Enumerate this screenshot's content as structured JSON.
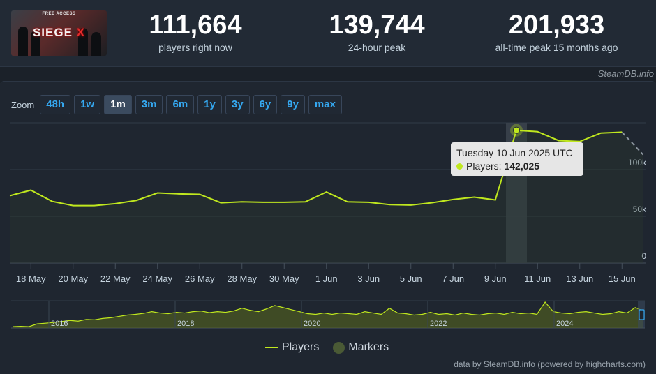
{
  "header": {
    "logo": {
      "top_text": "FREE ACCESS",
      "wordmark": "SIEGE",
      "wordmark_x": "X"
    },
    "stats": [
      {
        "value": "111,664",
        "label": "players right now"
      },
      {
        "value": "139,744",
        "label": "24-hour peak"
      },
      {
        "value": "201,933",
        "label": "all-time peak 15 months ago"
      }
    ]
  },
  "site_tag": "SteamDB.info",
  "zoom": {
    "label": "Zoom",
    "buttons": [
      "48h",
      "1w",
      "1m",
      "3m",
      "6m",
      "1y",
      "3y",
      "6y",
      "9y",
      "max"
    ],
    "active": "1m"
  },
  "tooltip": {
    "date": "Tuesday 10 Jun 2025 UTC",
    "series_label": "Players:",
    "value": "142,025"
  },
  "legend": {
    "players": "Players",
    "markers": "Markers"
  },
  "credit": "data by SteamDB.info (powered by highcharts.com)",
  "chart_data": {
    "type": "line",
    "series_name": "Players",
    "x_tick_labels": [
      "18 May",
      "20 May",
      "22 May",
      "24 May",
      "26 May",
      "28 May",
      "30 May",
      "1 Jun",
      "3 Jun",
      "5 Jun",
      "7 Jun",
      "9 Jun",
      "11 Jun",
      "13 Jun",
      "15 Jun"
    ],
    "y_tick_labels": [
      "0",
      "50k",
      "100k"
    ],
    "ylim": [
      0,
      150000
    ],
    "x": [
      "2025-05-17",
      "2025-05-18",
      "2025-05-19",
      "2025-05-20",
      "2025-05-21",
      "2025-05-22",
      "2025-05-23",
      "2025-05-24",
      "2025-05-25",
      "2025-05-26",
      "2025-05-27",
      "2025-05-28",
      "2025-05-29",
      "2025-05-30",
      "2025-05-31",
      "2025-06-01",
      "2025-06-02",
      "2025-06-03",
      "2025-06-04",
      "2025-06-05",
      "2025-06-06",
      "2025-06-07",
      "2025-06-08",
      "2025-06-09",
      "2025-06-10",
      "2025-06-11",
      "2025-06-12",
      "2025-06-13",
      "2025-06-14",
      "2025-06-15",
      "2025-06-16"
    ],
    "values": [
      72000,
      78000,
      66000,
      61500,
      61500,
      63500,
      67000,
      75000,
      74000,
      73500,
      64500,
      65500,
      65000,
      65000,
      65500,
      76000,
      65500,
      65000,
      62500,
      62000,
      64500,
      68000,
      70500,
      67500,
      142000,
      140500,
      131000,
      130000,
      139000,
      140000,
      116000
    ],
    "dashed_last_point": true,
    "highlight": {
      "x": "2025-06-10",
      "value": 142025
    },
    "navigator": {
      "x_tick_labels": [
        "2016",
        "2018",
        "2020",
        "2022",
        "2024"
      ],
      "values": [
        4,
        5,
        4,
        12,
        14,
        16,
        19,
        22,
        20,
        25,
        24,
        28,
        30,
        34,
        38,
        40,
        43,
        48,
        44,
        42,
        46,
        44,
        48,
        50,
        45,
        48,
        46,
        50,
        58,
        52,
        48,
        56,
        66,
        60,
        54,
        48,
        42,
        40,
        44,
        40,
        44,
        42,
        40,
        48,
        44,
        40,
        58,
        44,
        42,
        38,
        40,
        46,
        40,
        42,
        38,
        44,
        40,
        38,
        42,
        44,
        40,
        46,
        42,
        44,
        40,
        76,
        48,
        44,
        42,
        46,
        48,
        44,
        40,
        42,
        48,
        44,
        60,
        50
      ]
    },
    "grid": true,
    "legend_position": "bottom-center"
  }
}
